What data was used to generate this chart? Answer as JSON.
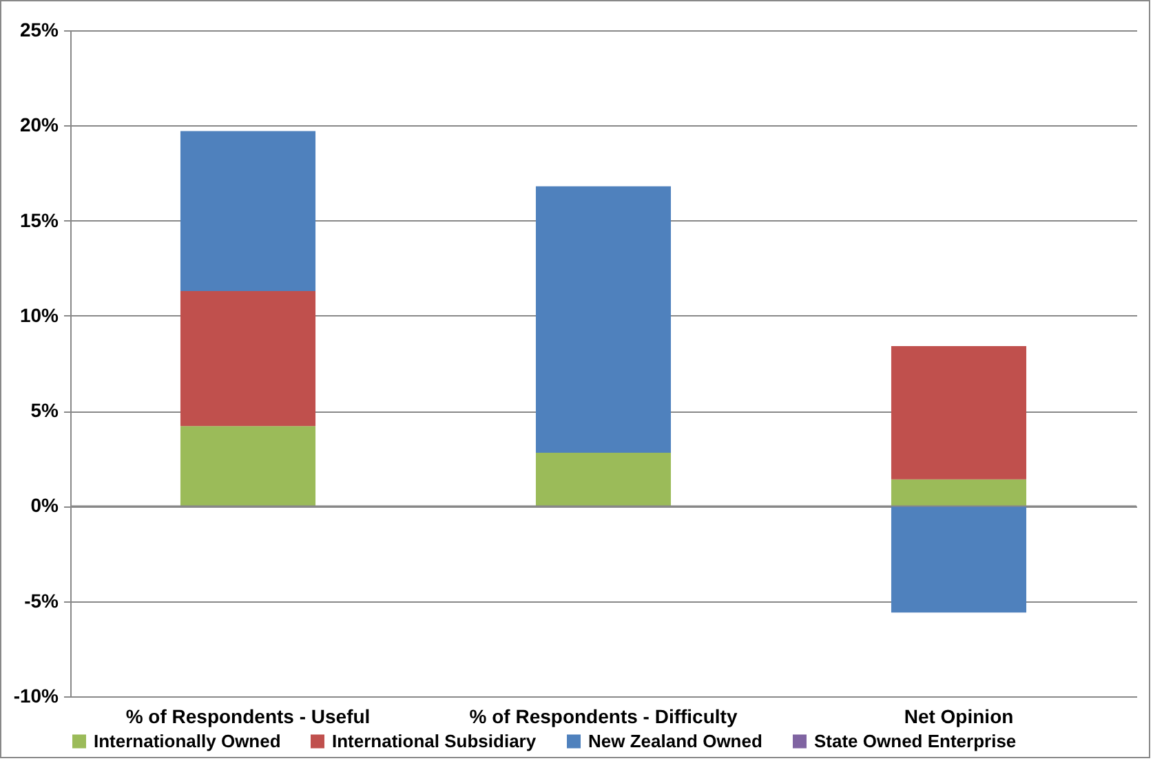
{
  "chart_data": {
    "type": "bar",
    "stacked": true,
    "categories": [
      "% of Respondents - Useful",
      "% of Respondents - Difficulty",
      "Net Opinion"
    ],
    "series": [
      {
        "name": "Internationally Owned",
        "color": "#9bbb59",
        "values": [
          4.2,
          2.8,
          1.4
        ]
      },
      {
        "name": "International Subsidiary",
        "color": "#c0504d",
        "values": [
          7.1,
          0,
          7.0
        ]
      },
      {
        "name": "New Zealand Owned",
        "color": "#4f81bd",
        "values": [
          8.4,
          14.0,
          -5.6
        ]
      },
      {
        "name": "State Owned Enterprise",
        "color": "#8064a2",
        "values": [
          0,
          0,
          0
        ]
      }
    ],
    "ylim": [
      -10,
      25
    ],
    "yticks": [
      {
        "value": -10,
        "label": "-10%"
      },
      {
        "value": -5,
        "label": "-5%"
      },
      {
        "value": 0,
        "label": "0%"
      },
      {
        "value": 5,
        "label": "5%"
      },
      {
        "value": 10,
        "label": "10%"
      },
      {
        "value": 15,
        "label": "15%"
      },
      {
        "value": 20,
        "label": "20%"
      },
      {
        "value": 25,
        "label": "25%"
      }
    ],
    "grid": "y",
    "legend": "bottom"
  }
}
